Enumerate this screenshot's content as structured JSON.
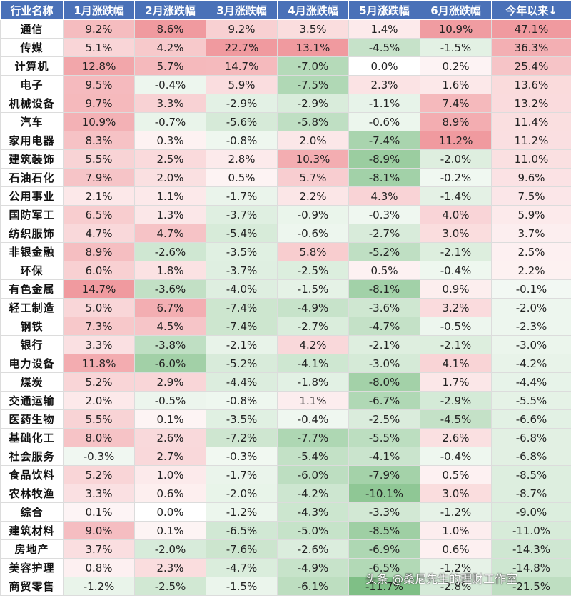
{
  "chart_data": {
    "type": "table",
    "columns": [
      "行业名称",
      "1月涨跌幅",
      "2月涨跌幅",
      "3月涨跌幅",
      "4月涨跌幅",
      "5月涨跌幅",
      "6月涨跌幅",
      "今年以来↓"
    ],
    "rows": [
      [
        "通信",
        "9.2%",
        "8.6%",
        "9.2%",
        "3.5%",
        "1.4%",
        "10.9%",
        "47.1%"
      ],
      [
        "传媒",
        "5.1%",
        "4.2%",
        "22.7%",
        "13.1%",
        "-4.5%",
        "-1.5%",
        "36.3%"
      ],
      [
        "计算机",
        "12.8%",
        "5.7%",
        "14.7%",
        "-7.0%",
        "0.0%",
        "0.2%",
        "25.4%"
      ],
      [
        "电子",
        "9.5%",
        "-0.4%",
        "5.9%",
        "-7.5%",
        "2.3%",
        "1.6%",
        "13.6%"
      ],
      [
        "机械设备",
        "9.7%",
        "3.3%",
        "-2.9%",
        "-2.9%",
        "-1.1%",
        "7.4%",
        "13.2%"
      ],
      [
        "汽车",
        "10.9%",
        "-0.7%",
        "-5.6%",
        "-5.8%",
        "-0.6%",
        "8.9%",
        "11.4%"
      ],
      [
        "家用电器",
        "8.3%",
        "0.3%",
        "-0.8%",
        "2.0%",
        "-7.4%",
        "11.2%",
        "11.2%"
      ],
      [
        "建筑装饰",
        "5.5%",
        "2.5%",
        "2.8%",
        "10.3%",
        "-8.9%",
        "-2.0%",
        "11.0%"
      ],
      [
        "石油石化",
        "7.9%",
        "2.0%",
        "0.5%",
        "5.7%",
        "-8.1%",
        "-0.2%",
        "9.6%"
      ],
      [
        "公用事业",
        "2.1%",
        "1.1%",
        "-1.7%",
        "2.2%",
        "4.3%",
        "-1.4%",
        "7.5%"
      ],
      [
        "国防军工",
        "6.5%",
        "1.3%",
        "-3.7%",
        "-0.9%",
        "-0.3%",
        "4.0%",
        "5.9%"
      ],
      [
        "纺织服饰",
        "4.7%",
        "4.7%",
        "-5.4%",
        "-0.6%",
        "-2.7%",
        "3.0%",
        "3.7%"
      ],
      [
        "非银金融",
        "8.9%",
        "-2.6%",
        "-3.5%",
        "5.8%",
        "-5.2%",
        "-2.1%",
        "2.5%"
      ],
      [
        "环保",
        "6.0%",
        "1.8%",
        "-3.7%",
        "-2.5%",
        "0.5%",
        "-0.4%",
        "2.2%"
      ],
      [
        "有色金属",
        "14.7%",
        "-3.6%",
        "-4.0%",
        "-1.5%",
        "-8.1%",
        "0.9%",
        "-0.1%"
      ],
      [
        "轻工制造",
        "5.0%",
        "6.7%",
        "-7.4%",
        "-4.9%",
        "-3.6%",
        "3.2%",
        "-2.0%"
      ],
      [
        "钢铁",
        "7.3%",
        "4.5%",
        "-7.4%",
        "-2.7%",
        "-4.7%",
        "-0.5%",
        "-2.3%"
      ],
      [
        "银行",
        "3.3%",
        "-3.8%",
        "-2.1%",
        "4.2%",
        "-2.1%",
        "-2.1%",
        "-3.0%"
      ],
      [
        "电力设备",
        "11.8%",
        "-6.0%",
        "-5.2%",
        "-4.1%",
        "-3.0%",
        "4.1%",
        "-4.2%"
      ],
      [
        "煤炭",
        "5.2%",
        "2.9%",
        "-4.4%",
        "-1.8%",
        "-8.0%",
        "1.7%",
        "-4.4%"
      ],
      [
        "交通运输",
        "2.0%",
        "-0.5%",
        "-0.8%",
        "1.1%",
        "-6.7%",
        "-2.9%",
        "-5.5%"
      ],
      [
        "医药生物",
        "5.5%",
        "0.1%",
        "-3.5%",
        "-0.4%",
        "-2.5%",
        "-4.5%",
        "-6.6%"
      ],
      [
        "基础化工",
        "8.0%",
        "2.6%",
        "-7.2%",
        "-7.7%",
        "-5.5%",
        "2.6%",
        "-6.8%"
      ],
      [
        "社会服务",
        "-0.3%",
        "2.7%",
        "-0.3%",
        "-5.4%",
        "-4.1%",
        "-0.4%",
        "-6.8%"
      ],
      [
        "食品饮料",
        "5.2%",
        "1.0%",
        "-1.7%",
        "-6.0%",
        "-7.9%",
        "0.5%",
        "-8.5%"
      ],
      [
        "农林牧渔",
        "3.3%",
        "0.6%",
        "-2.0%",
        "-4.2%",
        "-10.1%",
        "3.0%",
        "-8.7%"
      ],
      [
        "综合",
        "0.1%",
        "0.0%",
        "-1.2%",
        "-4.3%",
        "-3.3%",
        "-1.2%",
        "-9.0%"
      ],
      [
        "建筑材料",
        "9.0%",
        "0.1%",
        "-6.5%",
        "-5.0%",
        "-8.5%",
        "1.0%",
        "-11.0%"
      ],
      [
        "房地产",
        "3.7%",
        "-2.0%",
        "-7.6%",
        "-2.6%",
        "-6.9%",
        "0.6%",
        "-14.3%"
      ],
      [
        "美容护理",
        "0.8%",
        "2.3%",
        "-4.7%",
        "-4.9%",
        "-6.5%",
        "-1.2%",
        "-14.8%"
      ],
      [
        "商贸零售",
        "-1.2%",
        "-2.5%",
        "-1.5%",
        "-6.1%",
        "-11.7%",
        "-2.8%",
        "-21.5%"
      ]
    ],
    "colors": {
      "header_bg": "#4a71b8",
      "positive": "#f09a9f",
      "negative": "#7fbf86"
    }
  },
  "watermark": "头条 @桑尼先生的理财工作室"
}
